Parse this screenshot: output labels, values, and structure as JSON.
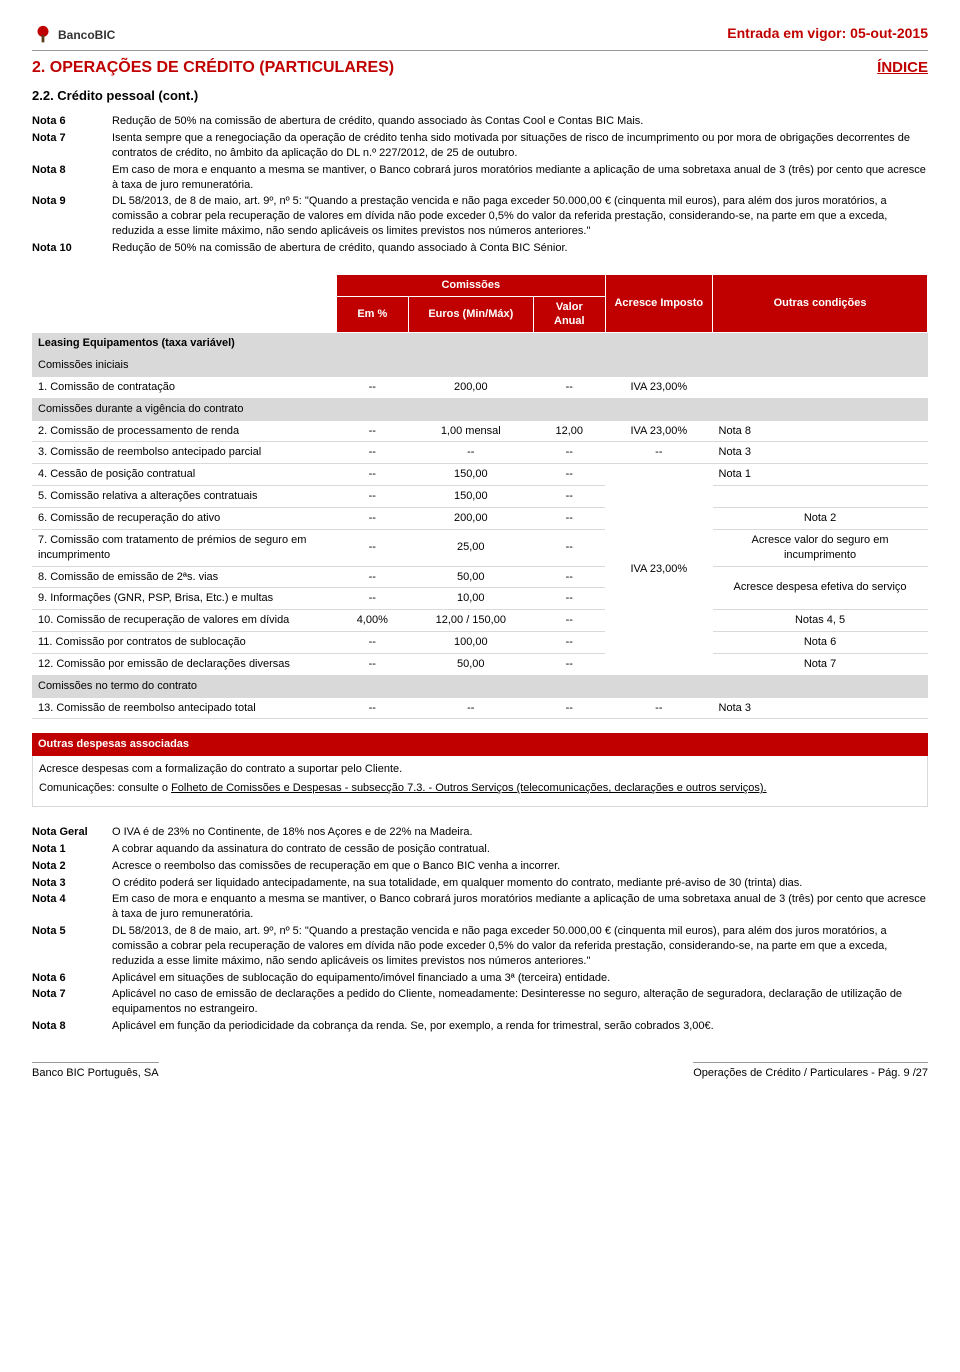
{
  "header": {
    "bank_name": "BancoBIC",
    "effective_label": "Entrada em vigor: 05-out-2015",
    "section_title": "2. OPERAÇÕES DE CRÉDITO (PARTICULARES)",
    "indice": "ÍNDICE",
    "subsection": "2.2. Crédito pessoal (cont.)"
  },
  "notas_top": [
    {
      "label": "Nota 6",
      "text": "Redução de 50% na comissão de abertura de crédito, quando associado às Contas Cool e Contas BIC Mais."
    },
    {
      "label": "Nota 7",
      "text": "Isenta sempre que a renegociação da operação de crédito tenha sido motivada por situações de risco de incumprimento ou por mora de obrigações decorrentes de contratos de crédito, no âmbito da aplicação do DL n.º 227/2012, de 25 de outubro."
    },
    {
      "label": "Nota 8",
      "text": "Em caso de mora e enquanto a mesma se mantiver, o Banco cobrará juros moratórios mediante a aplicação de uma sobretaxa anual de 3 (três) por cento que acresce à taxa de juro remuneratória."
    },
    {
      "label": "Nota 9",
      "text": "DL 58/2013, de 8 de maio, art. 9º, nº 5: \"Quando a prestação vencida e não paga exceder 50.000,00 € (cinquenta mil euros), para além dos juros moratórios, a comissão a cobrar pela recuperação de valores em dívida não pode exceder 0,5% do valor da referida prestação, considerando-se, na parte em que a exceda, reduzida a esse limite máximo, não sendo aplicáveis os limites previstos nos números anteriores.\""
    },
    {
      "label": "Nota 10",
      "text": "Redução de 50% na comissão de abertura de crédito, quando associado à Conta BIC Sénior."
    }
  ],
  "table": {
    "head": {
      "comissoes": "Comissões",
      "em_pct": "Em %",
      "euros": "Euros (Min/Máx)",
      "valor_anual": "Valor Anual",
      "acresce": "Acresce Imposto",
      "outras": "Outras condições"
    },
    "section_label": "Leasing Equipamentos (taxa variável)",
    "band_iniciais": "Comissões iniciais",
    "band_vigencia": "Comissões durante a vigência do contrato",
    "band_termo": "Comissões no termo do contrato",
    "rows_ini": [
      {
        "desc": "1. Comissão de contratação",
        "pct": "--",
        "eur": "200,00",
        "va": "--",
        "imp": "IVA 23,00%",
        "oc": ""
      }
    ],
    "row2": {
      "desc": "2. Comissão de processamento de renda",
      "pct": "--",
      "eur": "1,00 mensal",
      "va": "12,00",
      "imp": "IVA 23,00%",
      "oc": "Nota 8"
    },
    "row3": {
      "desc": "3. Comissão de reembolso antecipado parcial",
      "pct": "--",
      "eur": "--",
      "va": "--",
      "imp": "--",
      "oc": "Nota 3"
    },
    "rows_group": [
      {
        "desc": "4. Cessão de posição contratual",
        "pct": "--",
        "eur": "150,00",
        "va": "--",
        "oc": "Nota 1"
      },
      {
        "desc": "5. Comissão relativa a alterações contratuais",
        "pct": "--",
        "eur": "150,00",
        "va": "--",
        "oc": ""
      },
      {
        "desc": "6. Comissão de recuperação do ativo",
        "pct": "--",
        "eur": "200,00",
        "va": "--",
        "oc": "Nota 2"
      },
      {
        "desc": "7. Comissão com tratamento de prémios de seguro em incumprimento",
        "pct": "--",
        "eur": "25,00",
        "va": "--",
        "oc": "Acresce valor do seguro em incumprimento"
      },
      {
        "desc": "8. Comissão de emissão de 2ªs. vias",
        "pct": "--",
        "eur": "50,00",
        "va": "--",
        "oc": "Acresce despesa efetiva do serviço",
        "oc_rowspan": 2
      },
      {
        "desc": "9. Informações (GNR, PSP, Brisa, Etc.) e multas",
        "pct": "--",
        "eur": "10,00",
        "va": "--"
      },
      {
        "desc": "10. Comissão de recuperação de valores em dívida",
        "pct": "4,00%",
        "eur": "12,00 / 150,00",
        "va": "--",
        "oc": "Notas 4, 5"
      },
      {
        "desc": "11. Comissão por contratos de sublocação",
        "pct": "--",
        "eur": "100,00",
        "va": "--",
        "oc": "Nota 6"
      },
      {
        "desc": "12. Comissão por emissão de declarações diversas",
        "pct": "--",
        "eur": "50,00",
        "va": "--",
        "oc": "Nota 7"
      }
    ],
    "imp_group": "IVA 23,00%",
    "row13": {
      "desc": "13. Comissão de reembolso antecipado total",
      "pct": "--",
      "eur": "--",
      "va": "--",
      "imp": "--",
      "oc": "Nota 3"
    }
  },
  "assoc": {
    "title": "Outras despesas associadas",
    "l1": "Acresce despesas com a formalização do contrato a suportar pelo Cliente.",
    "l2a": "Comunicações: consulte o ",
    "l2b": "Folheto de Comissões e Despesas - subsecção 7.3. - Outros Serviços (telecomunicações, declarações e outros serviços)."
  },
  "notas_bottom": [
    {
      "label": "Nota Geral",
      "text": "O IVA é de 23% no Continente, de 18% nos Açores e de 22% na Madeira."
    },
    {
      "label": "Nota 1",
      "text": "A cobrar aquando da assinatura do contrato de cessão de posição contratual."
    },
    {
      "label": "Nota 2",
      "text": "Acresce o reembolso das comissões de recuperação em que o Banco BIC venha a incorrer."
    },
    {
      "label": "Nota 3",
      "text": "O crédito poderá ser liquidado antecipadamente, na sua totalidade, em qualquer momento do contrato, mediante pré-aviso de 30 (trinta) dias."
    },
    {
      "label": "Nota 4",
      "text": "Em caso de mora e enquanto a mesma se mantiver, o Banco cobrará juros moratórios mediante a aplicação de uma sobretaxa anual de 3 (três) por cento que acresce à taxa de juro remuneratória."
    },
    {
      "label": "Nota 5",
      "text": "DL 58/2013, de 8 de maio, art. 9º, nº 5: \"Quando a prestação vencida e não paga exceder 50.000,00 € (cinquenta mil euros), para além dos juros moratórios, a comissão a cobrar pela recuperação de valores em dívida não pode exceder 0,5% do valor da referida prestação, considerando-se, na parte em que a exceda, reduzida a esse limite máximo, não sendo aplicáveis os limites previstos nos números anteriores.\""
    },
    {
      "label": "Nota 6",
      "text": "Aplicável em situações de sublocação do equipamento/imóvel financiado a uma 3ª (terceira) entidade."
    },
    {
      "label": "Nota 7",
      "text": "Aplicável no caso de emissão de declarações a pedido do Cliente, nomeadamente: Desinteresse no seguro, alteração de seguradora, declaração de utilização de equipamentos no estrangeiro."
    },
    {
      "label": "Nota 8",
      "text": "Aplicável em função da periodicidade da cobrança da renda. Se, por exemplo, a renda for trimestral, serão cobrados 3,00€."
    }
  ],
  "footer": {
    "left": "Banco BIC Português, SA",
    "right": "Operações de Crédito / Particulares - Pág. 9 /27"
  },
  "colors": {
    "brand": "#c00000",
    "grey": "#d9d9d9"
  }
}
